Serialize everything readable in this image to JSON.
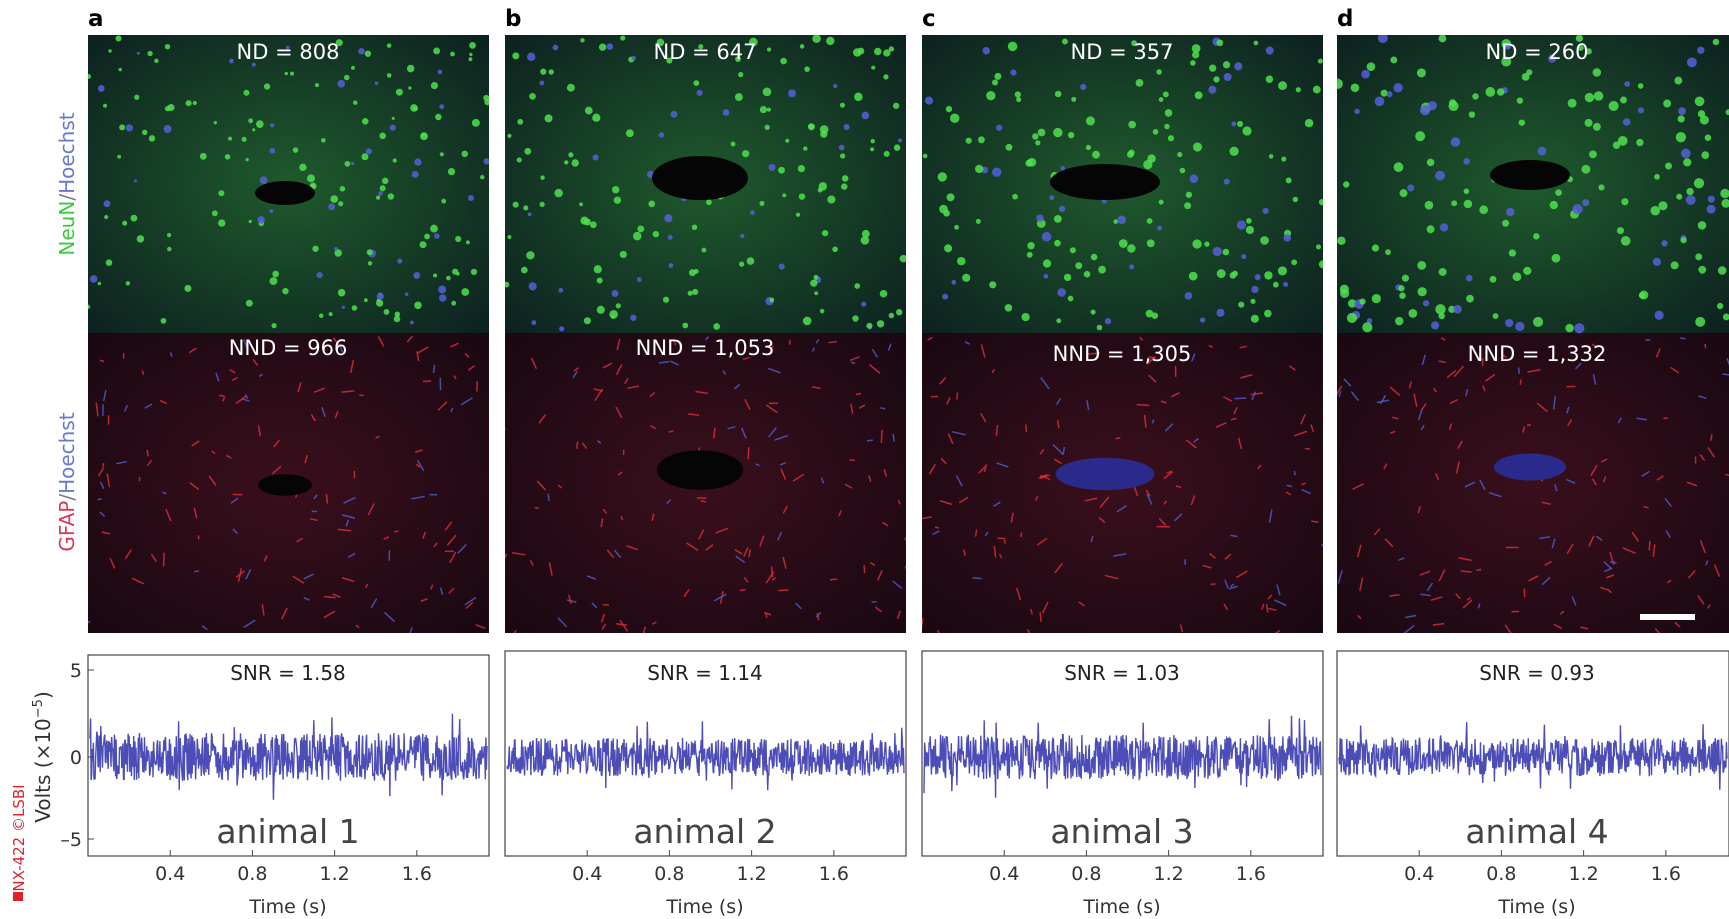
{
  "panels": [
    {
      "letter": "a",
      "nd": "ND = 808",
      "nnd": "NND = 966",
      "snr": "SNR = 1.58",
      "animal": "animal 1"
    },
    {
      "letter": "b",
      "nd": "ND = 647",
      "nnd": "NND = 1,053",
      "snr": "SNR = 1.14",
      "animal": "animal 2"
    },
    {
      "letter": "c",
      "nd": "ND = 357",
      "nnd": "NND = 1,305",
      "snr": "SNR = 1.03",
      "animal": "animal 3"
    },
    {
      "letter": "d",
      "nd": "ND = 260",
      "nnd": "NND = 1,332",
      "snr": "SNR = 0.93",
      "animal": "animal 4"
    }
  ],
  "row_labels": [
    {
      "stain": "NeuN",
      "sep": "/",
      "counter": "Hoechst"
    },
    {
      "stain": "GFAP",
      "sep": "/",
      "counter": "Hoechst"
    }
  ],
  "volts_axis": {
    "label": "Volts (×10",
    "exponent": "−5",
    "close": ")"
  },
  "y_ticks": [
    "5",
    "0",
    "–5"
  ],
  "x_ticks": [
    "0.4",
    "0.8",
    "1.2",
    "1.6"
  ],
  "x_label": "Time (s)",
  "watermark": "NX-422 ©LSBI"
}
